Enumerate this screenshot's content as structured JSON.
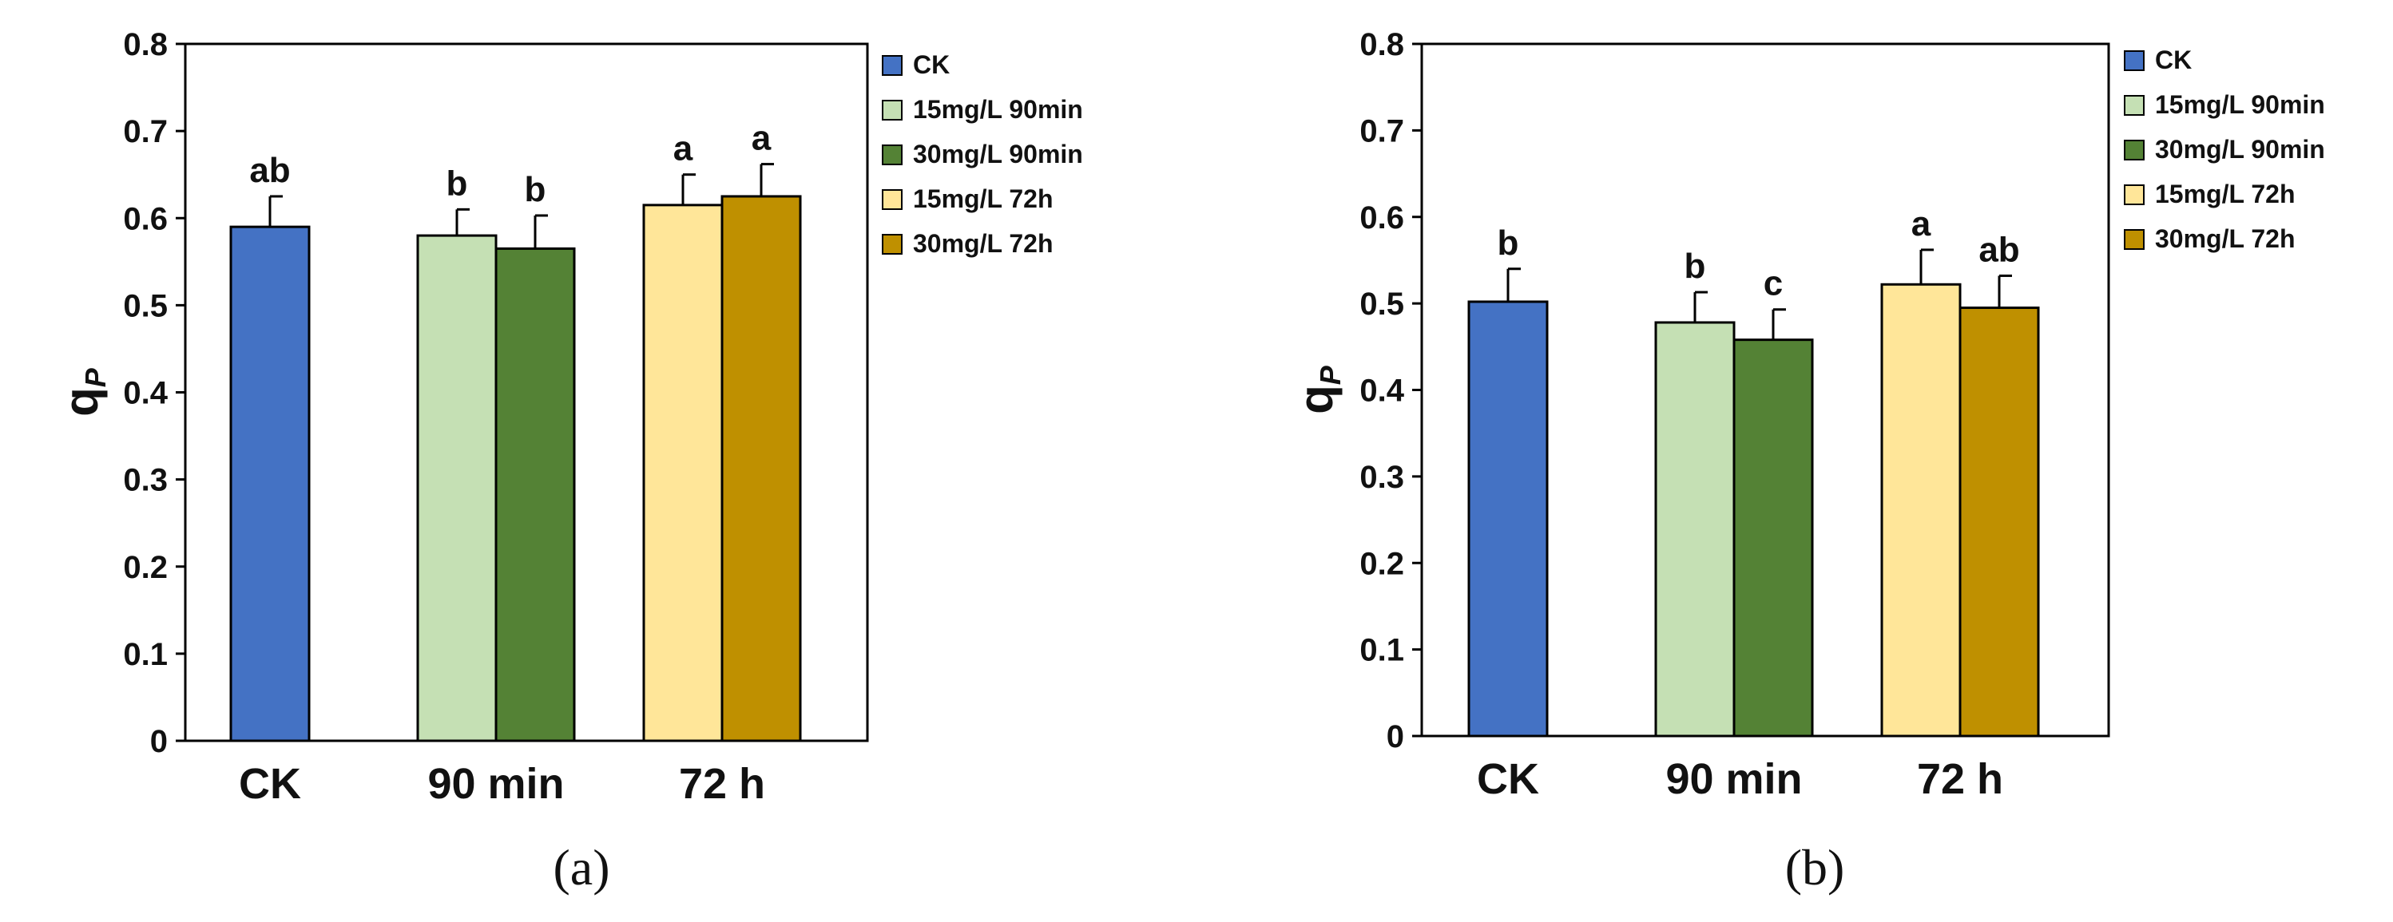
{
  "colors": {
    "ck": "#4472C4",
    "light_green": "#C5E0B4",
    "dark_green": "#548235",
    "light_yellow": "#FFE699",
    "gold": "#BF9000"
  },
  "legend": [
    {
      "label": "CK",
      "color": "#4472C4"
    },
    {
      "label": "15mg/L 90min",
      "color": "#C5E0B4"
    },
    {
      "label": "30mg/L 90min",
      "color": "#548235"
    },
    {
      "label": "15mg/L 72h",
      "color": "#FFE699"
    },
    {
      "label": "30mg/L 72h",
      "color": "#BF9000"
    }
  ],
  "chart_data": [
    {
      "type": "bar",
      "panel_label": "(a)",
      "ylabel": "q",
      "ylabel_sub": "P",
      "ylim": [
        0,
        0.8
      ],
      "yticks": [
        "0",
        "0.1",
        "0.2",
        "0.3",
        "0.4",
        "0.5",
        "0.6",
        "0.7",
        "0.8"
      ],
      "categories": [
        "CK",
        "90 min",
        "72 h"
      ],
      "bars": [
        {
          "series": "CK",
          "group": 0,
          "value": 0.59,
          "error": 0.035,
          "letter": "ab"
        },
        {
          "series": "15mg/L 90min",
          "group": 1,
          "value": 0.58,
          "error": 0.03,
          "letter": "b"
        },
        {
          "series": "30mg/L 90min",
          "group": 1,
          "value": 0.565,
          "error": 0.038,
          "letter": "b"
        },
        {
          "series": "15mg/L 72h",
          "group": 2,
          "value": 0.615,
          "error": 0.035,
          "letter": "a"
        },
        {
          "series": "30mg/L 72h",
          "group": 2,
          "value": 0.625,
          "error": 0.037,
          "letter": "a"
        }
      ]
    },
    {
      "type": "bar",
      "panel_label": "(b)",
      "ylabel": "q",
      "ylabel_sub": "P",
      "ylim": [
        0,
        0.8
      ],
      "yticks": [
        "0",
        "0.1",
        "0.2",
        "0.3",
        "0.4",
        "0.5",
        "0.6",
        "0.7",
        "0.8"
      ],
      "categories": [
        "CK",
        "90 min",
        "72 h"
      ],
      "bars": [
        {
          "series": "CK",
          "group": 0,
          "value": 0.502,
          "error": 0.038,
          "letter": "b"
        },
        {
          "series": "15mg/L 90min",
          "group": 1,
          "value": 0.478,
          "error": 0.035,
          "letter": "b"
        },
        {
          "series": "30mg/L 90min",
          "group": 1,
          "value": 0.458,
          "error": 0.035,
          "letter": "c"
        },
        {
          "series": "15mg/L 72h",
          "group": 2,
          "value": 0.522,
          "error": 0.04,
          "letter": "a"
        },
        {
          "series": "30mg/L 72h",
          "group": 2,
          "value": 0.495,
          "error": 0.037,
          "letter": "ab"
        }
      ]
    }
  ]
}
